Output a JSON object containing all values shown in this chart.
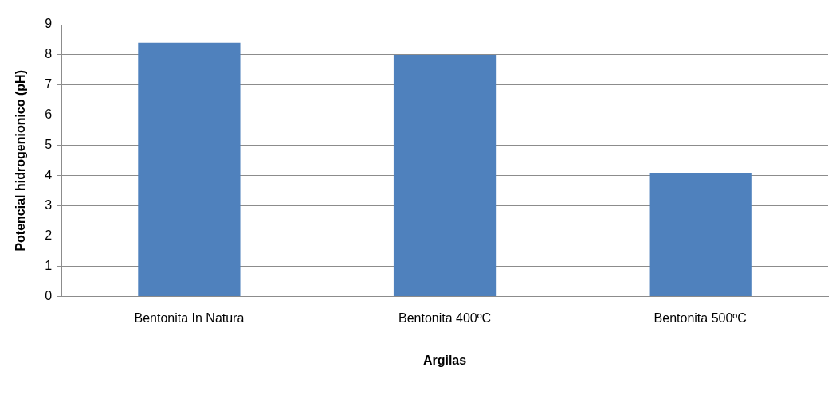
{
  "chart_data": {
    "type": "bar",
    "xlabel": "Argilas",
    "ylabel": "Potencial hidrogenionico (pH)",
    "categories": [
      "Bentonita In Natura",
      "Bentonita 400ºC",
      "Bentonita 500ºC"
    ],
    "values": [
      8.4,
      8.0,
      4.1
    ],
    "color": "#4f81bd",
    "ylim": [
      0,
      9
    ],
    "yticks": [
      0,
      1,
      2,
      3,
      4,
      5,
      6,
      7,
      8,
      9
    ],
    "grid": "y",
    "legend": false
  }
}
